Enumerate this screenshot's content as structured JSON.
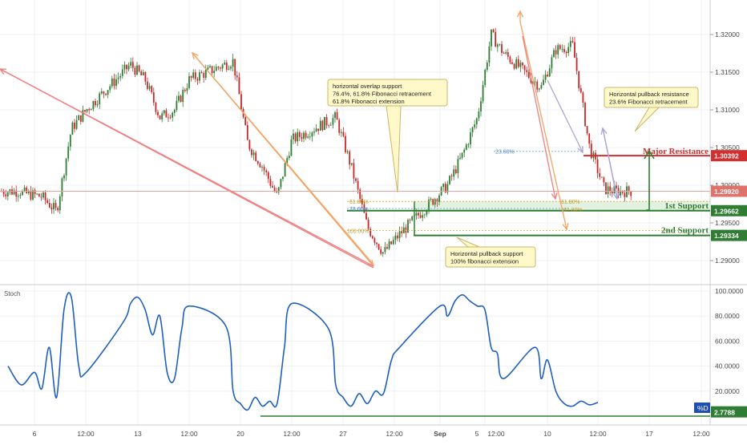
{
  "colors": {
    "background": "#ffffff",
    "grid": "#eef0f3",
    "axis_text": "#4a4a4a",
    "candle_up": "#2e7d32",
    "candle_down": "#c62828",
    "stoch_line": "#1f5fbf",
    "support_line": "#2e7d32",
    "resistance_line": "#d32f2f",
    "orange_arrow": "#f4a261",
    "pink_arrow": "#ef7f7f",
    "purple_arrow": "#a9a6d6",
    "callout_fill": "#fff8c8",
    "callout_border": "#c9b66b",
    "support_zone": "#dff0dd"
  },
  "price_axis": {
    "ticks": [
      "1.32000",
      "1.31500",
      "1.31000",
      "1.30500",
      "1.30000",
      "1.29500",
      "1.29000"
    ],
    "badges": [
      {
        "key": "resistance",
        "text": "1.30392",
        "color": "#d32f2f"
      },
      {
        "key": "current",
        "text": "1.29920",
        "color": "#e0726c"
      },
      {
        "key": "support1",
        "text": "1.29662",
        "color": "#2e7d32"
      },
      {
        "key": "support2",
        "text": "1.29334",
        "color": "#2e7d32"
      }
    ]
  },
  "stoch_axis": {
    "ticks": [
      "100.0000",
      "80.0000",
      "60.0000",
      "40.0000",
      "20.0000"
    ],
    "badge": "2.7788",
    "tag": "%D",
    "title": "Stoch"
  },
  "time_axis": {
    "ticks": [
      "6",
      "12:00",
      "13",
      "12:00",
      "20",
      "12:00",
      "27",
      "12:00",
      "Sep",
      "5",
      "12:00",
      "10",
      "12:00",
      "17",
      "12:00"
    ]
  },
  "levels": {
    "major_resistance_label": "Major Resistance",
    "support1_label": "1st Support",
    "support2_label": "2nd Support"
  },
  "fib_labels": {
    "left_618": "61.80%",
    "left_786": "78.60%",
    "left_100": "100.00%",
    "right_618": "61.80%",
    "right_618b": "61.80%",
    "top_236": "23.60%"
  },
  "callouts": {
    "overlap": [
      "horizontal overlap support",
      "76.4%, 61.8% Fibonacci retracement",
      "61.8% Fibonacci extension"
    ],
    "pullback_resistance": [
      "Horizontal pullback resistance",
      "23.6% Fibonacci retracement"
    ],
    "pullback_support": [
      "Horizontal pullback support",
      "100% fibonacci extension"
    ]
  },
  "chart_data": [
    {
      "type": "line",
      "panel": "price",
      "title": "",
      "price_range": [
        1.2875,
        1.3235
      ],
      "x_time_range": [
        "Aug 5",
        "Sep 18"
      ],
      "close_path": [
        [
          "Aug 5",
          1.299
        ],
        [
          "Aug 6",
          1.2985
        ],
        [
          "Aug 7",
          1.2965
        ],
        [
          "Aug 8",
          1.3075
        ],
        [
          "Aug 9",
          1.31
        ],
        [
          "Aug 12",
          1.316
        ],
        [
          "Aug 13",
          1.314
        ],
        [
          "Aug 14",
          1.309
        ],
        [
          "Aug 15",
          1.31
        ],
        [
          "Aug 16",
          1.314
        ],
        [
          "Aug 19",
          1.3165
        ],
        [
          "Aug 20",
          1.3055
        ],
        [
          "Aug 21",
          1.3025
        ],
        [
          "Aug 22",
          1.2985
        ],
        [
          "Aug 23",
          1.306
        ],
        [
          "Aug 26",
          1.309
        ],
        [
          "Aug 27",
          1.3025
        ],
        [
          "Aug 28",
          1.2945
        ],
        [
          "Aug 29",
          1.291
        ],
        [
          "Aug 30",
          1.2935
        ],
        [
          "Sep 2",
          1.3
        ],
        [
          "Sep 3",
          1.304
        ],
        [
          "Sep 4",
          1.309
        ],
        [
          "Sep 5",
          1.32
        ],
        [
          "Sep 6",
          1.3175
        ],
        [
          "Sep 9",
          1.313
        ],
        [
          "Sep 10",
          1.318
        ],
        [
          "Sep 11",
          1.3185
        ],
        [
          "Sep 12",
          1.305
        ],
        [
          "Sep 13",
          1.2995
        ],
        [
          "Sep 14",
          1.2992
        ]
      ],
      "levels": {
        "major_resistance": 1.30392,
        "current_price": 1.2992,
        "support_1": 1.29662,
        "support_2": 1.29334
      },
      "annotations": [
        "Major Resistance",
        "1st Support",
        "2nd Support"
      ]
    },
    {
      "type": "line",
      "panel": "stochastic",
      "title": "Stoch",
      "y_range": [
        0,
        100
      ],
      "series": [
        {
          "name": "%D",
          "values": [
            [
              "Aug 5",
              40
            ],
            [
              "Aug 5 12:00",
              25
            ],
            [
              "Aug 6",
              35
            ],
            [
              "Aug 6 12:00",
              22
            ],
            [
              "Aug 7",
              55
            ],
            [
              "Aug 7 12:00",
              15
            ],
            [
              "Aug 8",
              85
            ],
            [
              "Aug 8 12:00",
              95
            ],
            [
              "Aug 9",
              40
            ],
            [
              "Aug 9 12:00",
              35
            ],
            [
              "Aug 12",
              75
            ],
            [
              "Aug 12 12:00",
              90
            ],
            [
              "Aug 13",
              95
            ],
            [
              "Aug 13 12:00",
              85
            ],
            [
              "Aug 14",
              65
            ],
            [
              "Aug 14 12:00",
              80
            ],
            [
              "Aug 15",
              35
            ],
            [
              "Aug 15 12:00",
              30
            ],
            [
              "Aug 16",
              70
            ],
            [
              "Aug 16 12:00",
              88
            ],
            [
              "Aug 19",
              72
            ],
            [
              "Aug 19 12:00",
              20
            ],
            [
              "Aug 20",
              10
            ],
            [
              "Aug 20 12:00",
              5
            ],
            [
              "Aug 21",
              15
            ],
            [
              "Aug 21 12:00",
              8
            ],
            [
              "Aug 22",
              12
            ],
            [
              "Aug 22 12:00",
              10
            ],
            [
              "Aug 23",
              55
            ],
            [
              "Aug 23 12:00",
              90
            ],
            [
              "Aug 26",
              70
            ],
            [
              "Aug 26 12:00",
              25
            ],
            [
              "Aug 27",
              15
            ],
            [
              "Aug 27 12:00",
              8
            ],
            [
              "Aug 28",
              18
            ],
            [
              "Aug 28 12:00",
              10
            ],
            [
              "Aug 29",
              20
            ],
            [
              "Aug 29 12:00",
              18
            ],
            [
              "Aug 30",
              45
            ],
            [
              "Aug 30 12:00",
              55
            ],
            [
              "Sep 2",
              88
            ],
            [
              "Sep 2 12:00",
              80
            ],
            [
              "Sep 3",
              92
            ],
            [
              "Sep 3 12:00",
              97
            ],
            [
              "Sep 4",
              92
            ],
            [
              "Sep 4 12:00",
              88
            ],
            [
              "Sep 5",
              85
            ],
            [
              "Sep 5 12:00",
              55
            ],
            [
              "Sep 6",
              50
            ],
            [
              "Sep 6 12:00",
              30
            ],
            [
              "Sep 9",
              55
            ],
            [
              "Sep 9 12:00",
              30
            ],
            [
              "Sep 10",
              45
            ],
            [
              "Sep 10 12:00",
              20
            ],
            [
              "Sep 11",
              10
            ],
            [
              "Sep 11 12:00",
              8
            ],
            [
              "Sep 12",
              12
            ],
            [
              "Sep 12 12:00",
              9
            ],
            [
              "Sep 13",
              11
            ]
          ]
        }
      ],
      "levels": {
        "last_value": 2.7788
      }
    }
  ]
}
